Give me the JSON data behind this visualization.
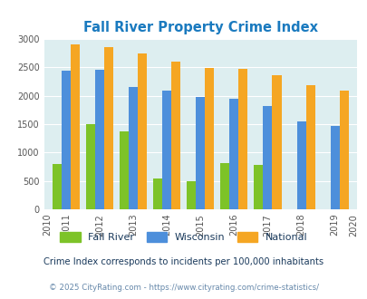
{
  "title": "Fall River Property Crime Index",
  "all_years": [
    2010,
    2011,
    2012,
    2013,
    2014,
    2015,
    2016,
    2017,
    2018,
    2019,
    2020
  ],
  "data_years": [
    2011,
    2012,
    2013,
    2014,
    2015,
    2016,
    2017,
    2018,
    2019
  ],
  "fall_river": [
    800,
    1500,
    1375,
    550,
    490,
    820,
    775,
    0,
    0
  ],
  "wisconsin": [
    2440,
    2460,
    2160,
    2090,
    1985,
    1950,
    1820,
    1555,
    1475
  ],
  "national": [
    2900,
    2860,
    2740,
    2600,
    2490,
    2470,
    2360,
    2185,
    2095
  ],
  "colors": {
    "fall_river": "#7dc328",
    "wisconsin": "#4d8fdb",
    "national": "#f5a623"
  },
  "ylim": [
    0,
    3000
  ],
  "yticks": [
    0,
    500,
    1000,
    1500,
    2000,
    2500,
    3000
  ],
  "background_color": "#ddeef0",
  "title_color": "#1a7abf",
  "subtitle": "Crime Index corresponds to incidents per 100,000 inhabitants",
  "footer": "© 2025 CityRating.com - https://www.cityrating.com/crime-statistics/",
  "subtitle_color": "#1a3a5c",
  "footer_color": "#6688aa"
}
